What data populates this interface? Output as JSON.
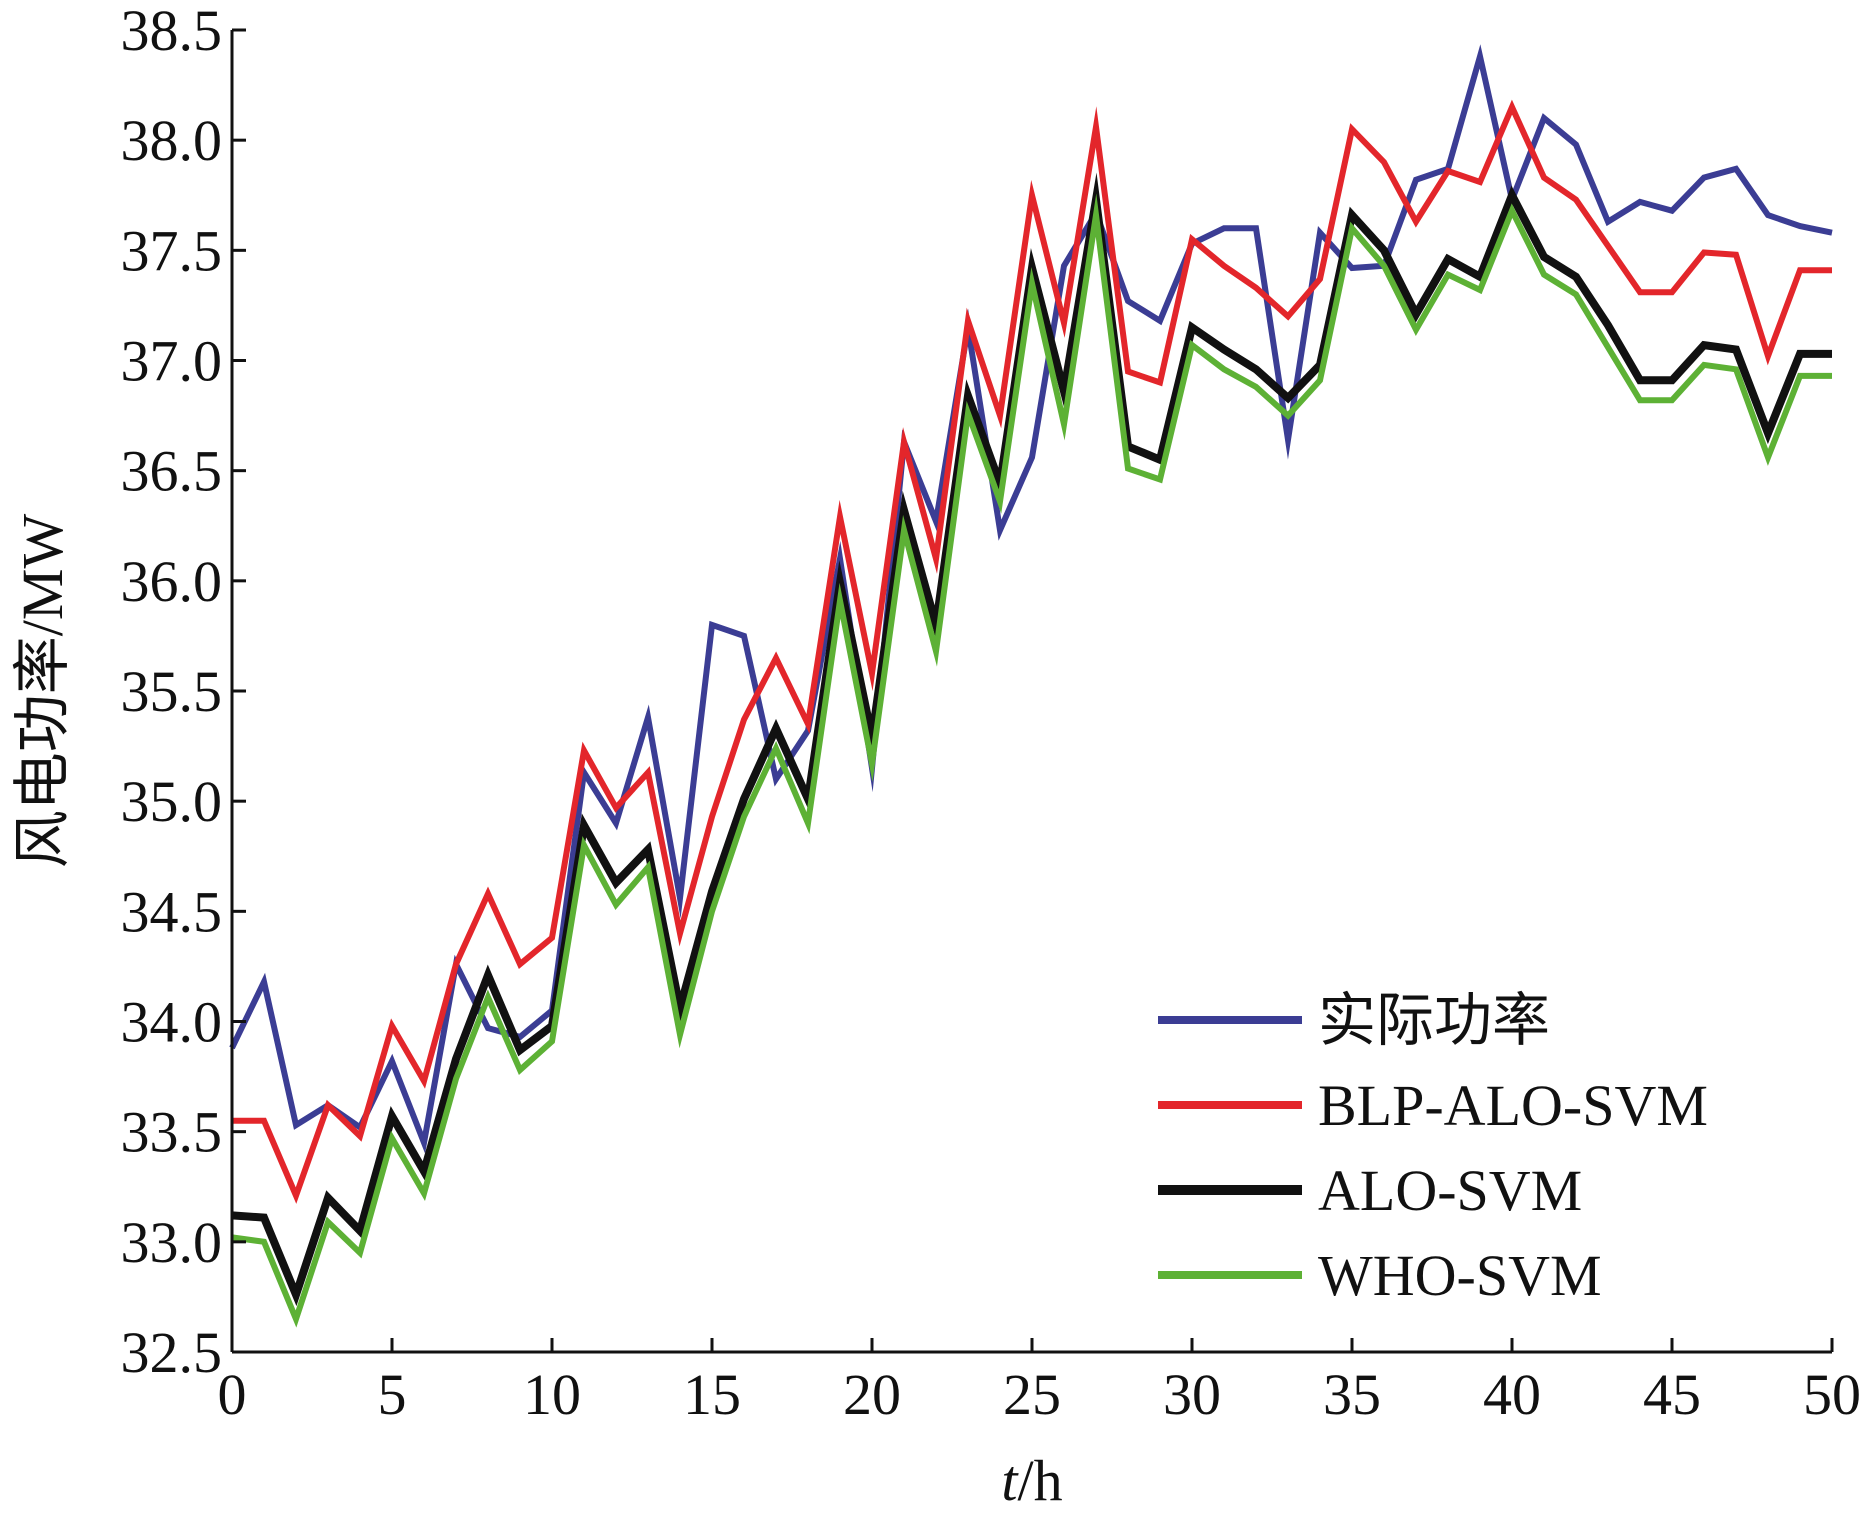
{
  "chart_data": {
    "type": "line",
    "xlabel_italic": "t",
    "xlabel_rest": "/h",
    "ylabel": "风电功率/MW",
    "xlim": [
      0,
      50
    ],
    "ylim": [
      32.5,
      38.5
    ],
    "xticks": [
      "0",
      "5",
      "10",
      "15",
      "20",
      "25",
      "30",
      "35",
      "40",
      "45",
      "50"
    ],
    "yticks": [
      "32.5",
      "33.0",
      "33.5",
      "34.0",
      "34.5",
      "35.0",
      "35.5",
      "36.0",
      "36.5",
      "37.0",
      "37.5",
      "38.0",
      "38.5"
    ],
    "grid": false,
    "legend_position": "bottom-right",
    "x": [
      0,
      1,
      2,
      3,
      4,
      5,
      6,
      7,
      8,
      9,
      10,
      11,
      12,
      13,
      14,
      15,
      16,
      17,
      18,
      19,
      20,
      21,
      22,
      23,
      24,
      25,
      26,
      27,
      28,
      29,
      30,
      31,
      32,
      33,
      34,
      35,
      36,
      37,
      38,
      39,
      40,
      41,
      42,
      43,
      44,
      45,
      46,
      47,
      48,
      49,
      50
    ],
    "series": [
      {
        "name": "实际功率",
        "color": "#3b3d94",
        "width": 6,
        "values": [
          33.88,
          34.18,
          33.53,
          33.62,
          33.52,
          33.82,
          33.45,
          34.26,
          33.97,
          33.93,
          34.05,
          35.13,
          34.9,
          35.38,
          34.56,
          35.8,
          35.75,
          35.1,
          35.32,
          36.1,
          35.15,
          36.63,
          36.27,
          37.15,
          36.23,
          36.56,
          37.43,
          37.67,
          37.27,
          37.18,
          37.53,
          37.6,
          37.6,
          36.64,
          37.58,
          37.42,
          37.43,
          37.82,
          37.87,
          38.38,
          37.73,
          38.1,
          37.98,
          37.63,
          37.72,
          37.68,
          37.83,
          37.87,
          37.66,
          37.61,
          37.58
        ]
      },
      {
        "name": "BLP-ALO-SVM",
        "color": "#e3262b",
        "width": 6,
        "values": [
          33.55,
          33.55,
          33.21,
          33.62,
          33.48,
          33.98,
          33.73,
          34.26,
          34.58,
          34.26,
          34.38,
          35.23,
          34.97,
          35.13,
          34.4,
          34.93,
          35.37,
          35.65,
          35.35,
          36.29,
          35.58,
          36.63,
          36.1,
          37.18,
          36.75,
          37.75,
          37.17,
          38.06,
          36.95,
          36.9,
          37.55,
          37.43,
          37.33,
          37.2,
          37.37,
          38.05,
          37.9,
          37.63,
          37.86,
          37.81,
          38.15,
          37.83,
          37.73,
          37.52,
          37.31,
          37.31,
          37.49,
          37.48,
          37.02,
          37.41,
          37.41
        ]
      },
      {
        "name": "ALO-SVM",
        "color": "#111111",
        "width": 8,
        "values": [
          33.12,
          33.11,
          32.76,
          33.2,
          33.05,
          33.57,
          33.32,
          33.83,
          34.21,
          33.87,
          33.98,
          34.89,
          34.63,
          34.78,
          34.06,
          34.59,
          35.01,
          35.33,
          35.01,
          35.99,
          35.29,
          36.32,
          35.8,
          36.84,
          36.44,
          37.42,
          36.86,
          37.73,
          36.61,
          36.55,
          37.15,
          37.05,
          36.96,
          36.83,
          36.98,
          37.66,
          37.5,
          37.21,
          37.46,
          37.38,
          37.75,
          37.47,
          37.38,
          37.16,
          36.91,
          36.91,
          37.07,
          37.05,
          36.67,
          37.03,
          37.03
        ]
      },
      {
        "name": "WHO-SVM",
        "color": "#5db135",
        "width": 6,
        "values": [
          33.02,
          33.0,
          32.65,
          33.09,
          32.95,
          33.47,
          33.22,
          33.74,
          34.11,
          33.78,
          33.91,
          34.8,
          34.53,
          34.7,
          33.94,
          34.5,
          34.93,
          35.24,
          34.9,
          35.91,
          35.17,
          36.23,
          35.68,
          36.76,
          36.36,
          37.35,
          36.71,
          37.66,
          36.51,
          36.46,
          37.07,
          36.96,
          36.88,
          36.75,
          36.91,
          37.6,
          37.43,
          37.14,
          37.39,
          37.32,
          37.68,
          37.39,
          37.3,
          37.06,
          36.82,
          36.82,
          36.98,
          36.96,
          36.56,
          36.93,
          36.93
        ]
      }
    ]
  }
}
